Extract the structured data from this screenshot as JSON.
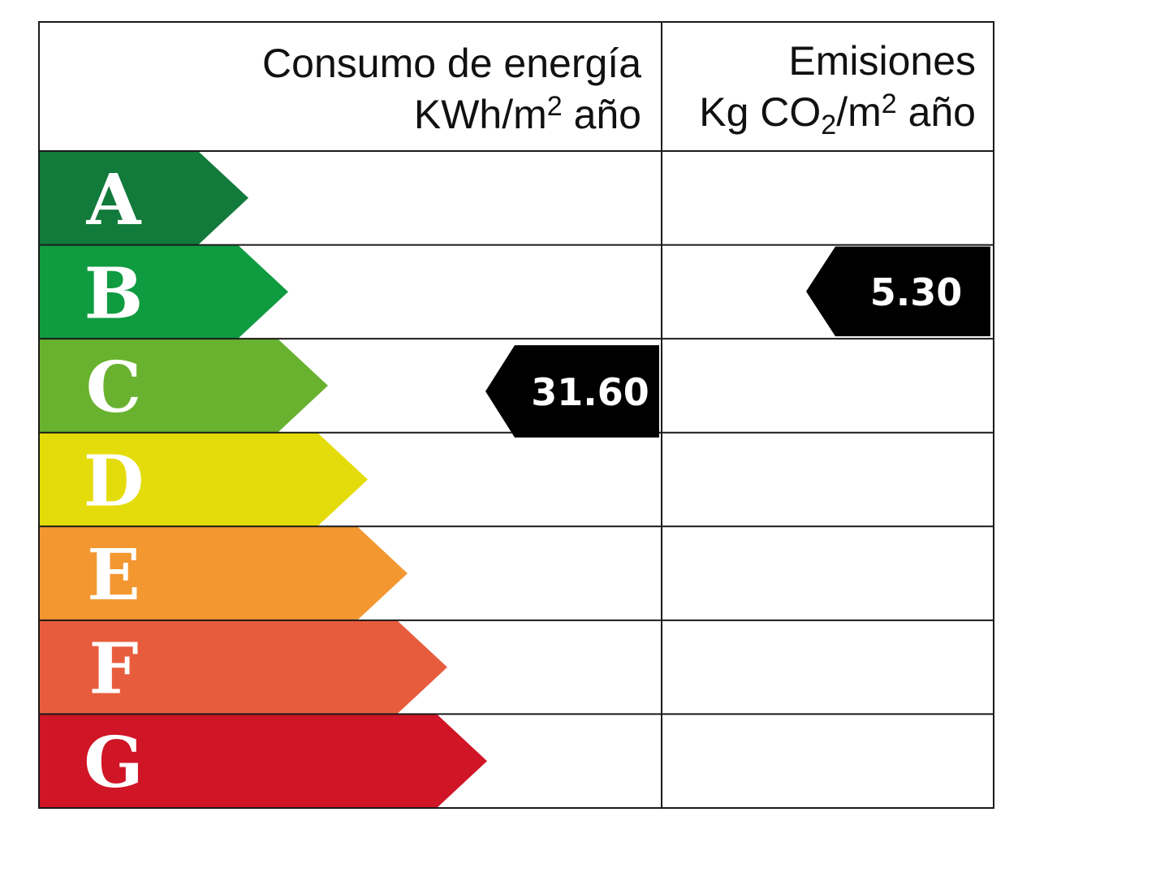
{
  "chart_data": {
    "type": "table",
    "columns": [
      {
        "title_line1": "Consumo de energía",
        "title_line2_prefix": "KWh/m",
        "title_line2_sup": "2",
        "title_line2_suffix": " año"
      },
      {
        "title_line1": "Emisiones",
        "title_line2_prefix": "Kg CO",
        "title_line2_sub": "2",
        "title_line2_mid": "/m",
        "title_line2_sup": "2",
        "title_line2_suffix": " año"
      }
    ],
    "ratings": [
      {
        "letter": "A",
        "color": "#127a3b"
      },
      {
        "letter": "B",
        "color": "#0f9b40"
      },
      {
        "letter": "C",
        "color": "#69b22f"
      },
      {
        "letter": "D",
        "color": "#e4dc0a"
      },
      {
        "letter": "E",
        "color": "#f39731"
      },
      {
        "letter": "F",
        "color": "#e85c3e"
      },
      {
        "letter": "G",
        "color": "#cf1526"
      }
    ],
    "indicators": [
      {
        "column": 0,
        "rating": "C",
        "value": "31.60"
      },
      {
        "column": 1,
        "rating": "B",
        "value": "5.30"
      }
    ]
  }
}
